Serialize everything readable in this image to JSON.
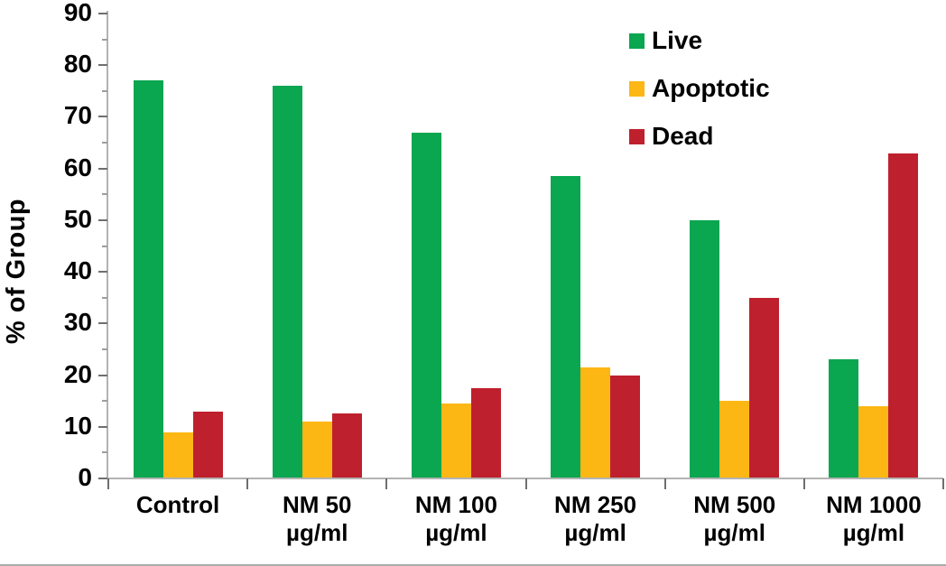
{
  "chart_data": {
    "type": "bar",
    "ylabel": "% of Group",
    "ylim": [
      0,
      90
    ],
    "y_major_step": 10,
    "y_minor_step": 5,
    "grid": false,
    "legend_position": "top-right-inside",
    "categories": [
      "Control",
      "NM 50 µg/ml",
      "NM 100 µg/ml",
      "NM 250 µg/ml",
      "NM 500 µg/ml",
      "NM 1000 µg/ml"
    ],
    "category_lines": [
      [
        "Control"
      ],
      [
        "NM 50",
        "µg/ml"
      ],
      [
        "NM 100",
        "µg/ml"
      ],
      [
        "NM 250",
        "µg/ml"
      ],
      [
        "NM 500",
        "µg/ml"
      ],
      [
        "NM 1000",
        "µg/ml"
      ]
    ],
    "y_tick_labels": [
      "0",
      "10",
      "20",
      "30",
      "40",
      "50",
      "60",
      "70",
      "80",
      "90"
    ],
    "series": [
      {
        "name": "Live",
        "color": "#0aa650",
        "values": [
          77,
          76,
          67,
          58.5,
          50,
          23
        ]
      },
      {
        "name": "Apoptotic",
        "color": "#fdb714",
        "values": [
          9,
          11,
          14.5,
          21.5,
          15,
          14
        ]
      },
      {
        "name": "Dead",
        "color": "#bf202d",
        "values": [
          13,
          12.5,
          17.5,
          20,
          35,
          63
        ]
      }
    ],
    "style": {
      "axis_color": "#b3b3b3",
      "tick_color": "#6f6f6f",
      "minor_tick_color": "#9d9d9d",
      "text_color": "#000000",
      "background": "#ffffff"
    }
  }
}
